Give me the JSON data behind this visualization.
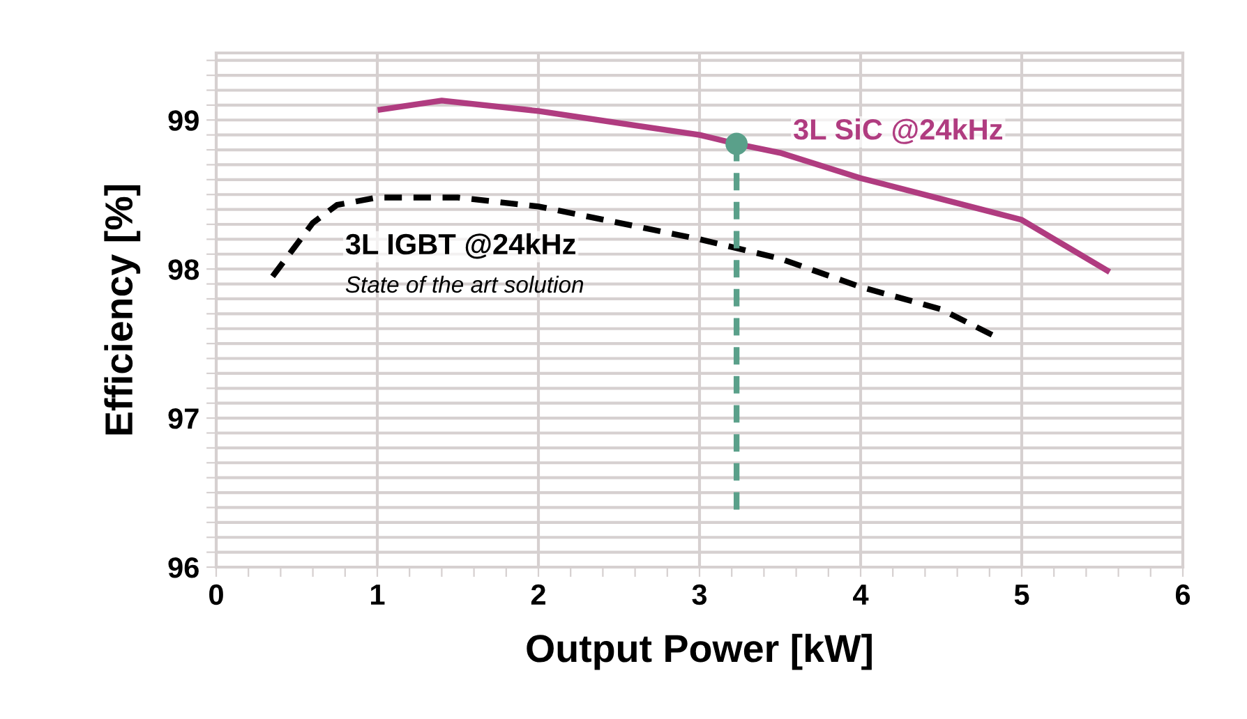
{
  "chart_data": {
    "type": "line",
    "xlabel": "Output Power [kW]",
    "ylabel": "Efficiency [%]",
    "xlim": [
      0,
      6
    ],
    "ylim": [
      96,
      99.45
    ],
    "xticks": [
      0,
      {
        "value": 0.2,
        "label": null
      },
      {
        "value": 0.4,
        "label": null
      },
      {
        "value": 0.6,
        "label": null
      },
      {
        "value": 0.8,
        "label": null
      },
      1,
      {
        "value": 1.2,
        "label": null
      },
      {
        "value": 1.4,
        "label": null
      },
      {
        "value": 1.6,
        "label": null
      },
      {
        "value": 1.8,
        "label": null
      },
      2,
      {
        "value": 2.2,
        "label": null
      },
      {
        "value": 2.4,
        "label": null
      },
      {
        "value": 2.6,
        "label": null
      },
      {
        "value": 2.8,
        "label": null
      },
      3,
      {
        "value": 3.2,
        "label": null
      },
      {
        "value": 3.4,
        "label": null
      },
      {
        "value": 3.6,
        "label": null
      },
      {
        "value": 3.8,
        "label": null
      },
      4,
      {
        "value": 4.2,
        "label": null
      },
      {
        "value": 4.4,
        "label": null
      },
      {
        "value": 4.6,
        "label": null
      },
      {
        "value": 4.8,
        "label": null
      },
      5,
      {
        "value": 5.2,
        "label": null
      },
      {
        "value": 5.4,
        "label": null
      },
      {
        "value": 5.6,
        "label": null
      },
      {
        "value": 5.8,
        "label": null
      },
      6
    ],
    "yticks": [
      96,
      {
        "value": 96.1,
        "label": null
      },
      {
        "value": 96.2,
        "label": null
      },
      {
        "value": 96.3,
        "label": null
      },
      {
        "value": 96.4,
        "label": null
      },
      {
        "value": 96.5,
        "label": null
      },
      {
        "value": 96.6,
        "label": null
      },
      {
        "value": 96.7,
        "label": null
      },
      {
        "value": 96.8,
        "label": null
      },
      {
        "value": 96.9,
        "label": null
      },
      97,
      {
        "value": 97.1,
        "label": null
      },
      {
        "value": 97.2,
        "label": null
      },
      {
        "value": 97.3,
        "label": null
      },
      {
        "value": 97.4,
        "label": null
      },
      {
        "value": 97.5,
        "label": null
      },
      {
        "value": 97.6,
        "label": null
      },
      {
        "value": 97.7,
        "label": null
      },
      {
        "value": 97.8,
        "label": null
      },
      {
        "value": 97.9,
        "label": null
      },
      98,
      {
        "value": 98.1,
        "label": null
      },
      {
        "value": 98.2,
        "label": null
      },
      {
        "value": 98.3,
        "label": null
      },
      {
        "value": 98.4,
        "label": null
      },
      {
        "value": 98.5,
        "label": null
      },
      {
        "value": 98.6,
        "label": null
      },
      {
        "value": 98.7,
        "label": null
      },
      {
        "value": 98.8,
        "label": null
      },
      {
        "value": 98.9,
        "label": null
      },
      99,
      {
        "value": 99.1,
        "label": null
      },
      {
        "value": 99.2,
        "label": null
      },
      {
        "value": 99.3,
        "label": null
      },
      {
        "value": 99.4,
        "label": null
      }
    ],
    "grid": true,
    "series": [
      {
        "name": "3L SiC @24kHz",
        "color": "#b03c80",
        "line_style": "solid",
        "x": [
          1.02,
          1.4,
          2,
          2.5,
          3,
          3.23,
          3.5,
          4,
          4.5,
          5,
          5.53
        ],
        "values": [
          99.07,
          99.13,
          99.06,
          98.98,
          98.9,
          98.84,
          98.78,
          98.61,
          98.47,
          98.33,
          97.99
        ]
      },
      {
        "name": "3L IGBT @24kHz",
        "color": "#000000",
        "line_style": "dashed",
        "x": [
          0.35,
          0.6,
          0.75,
          1,
          1.5,
          2,
          2.5,
          3,
          3.5,
          4,
          4.5,
          4.85
        ],
        "values": [
          97.95,
          98.31,
          98.43,
          98.48,
          98.48,
          98.42,
          98.31,
          98.2,
          98.07,
          97.88,
          97.73,
          97.54
        ]
      },
      {
        "color": "#5aa08a",
        "line_style": "dashed",
        "x": [
          3.23,
          3.23
        ],
        "values": [
          98.84,
          96.38
        ]
      },
      {
        "type": "scatter",
        "marker": "circle",
        "color": "#5aa08a",
        "x": [
          3.23
        ],
        "values": [
          98.84
        ]
      }
    ],
    "annotations": [
      "State of the art solution"
    ]
  }
}
